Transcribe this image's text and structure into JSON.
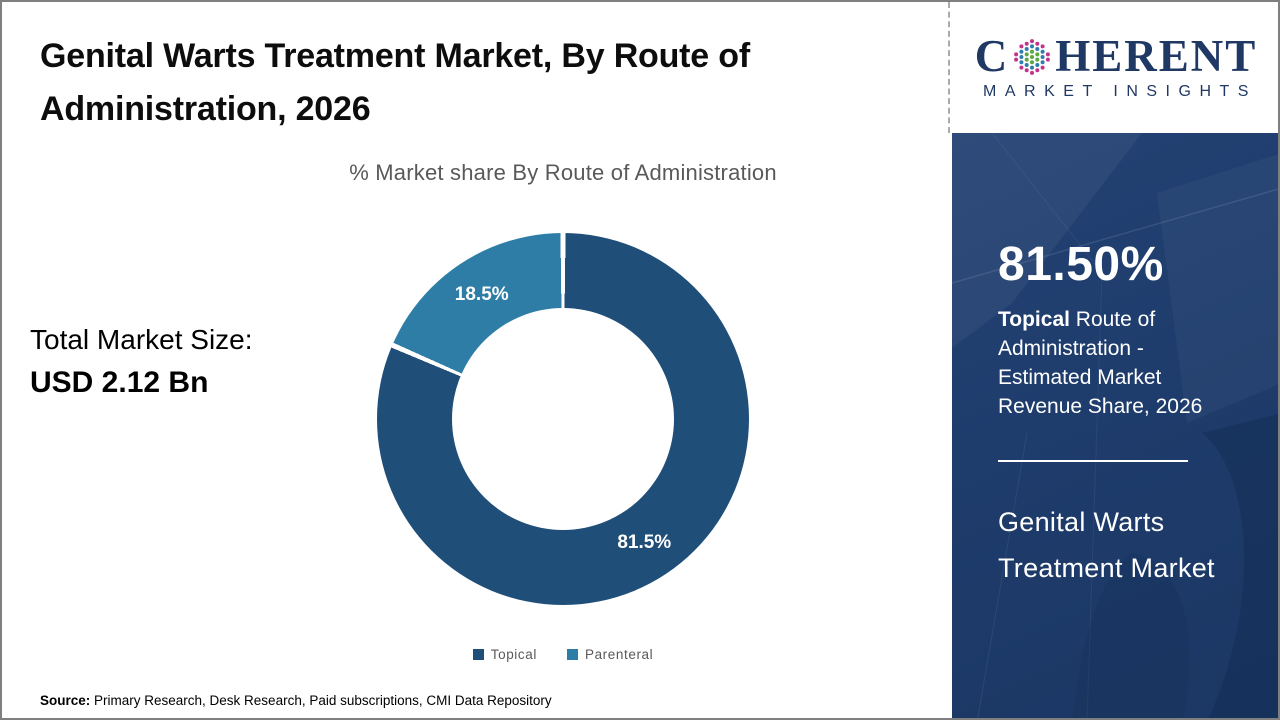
{
  "header": {
    "title": "Genital Warts Treatment Market, By Route of Administration, 2026"
  },
  "logo": {
    "brand_c": "C",
    "brand_rest": "HERENT",
    "tagline": "MARKET INSIGHTS",
    "brand_color": "#1f3864",
    "globe_colors": {
      "inner": "#5aa83f",
      "middle": "#2e7dae",
      "outer": "#c2348a"
    }
  },
  "main": {
    "total_market_label": "Total Market Size:",
    "total_market_value": "USD 2.12 Bn",
    "source_label": "Source:",
    "source_text": " Primary Research, Desk Research, Paid subscriptions, CMI Data Repository"
  },
  "chart_data": {
    "type": "pie",
    "donut": true,
    "title": "% Market share By Route of Administration",
    "categories": [
      "Topical",
      "Parenteral"
    ],
    "values": [
      81.5,
      18.5
    ],
    "labels": [
      "81.5%",
      "18.5%"
    ],
    "colors": [
      "#1F4E79",
      "#2E7DA6"
    ],
    "legend_position": "bottom",
    "start_angle_deg": 0,
    "direction": "clockwise"
  },
  "sidebar": {
    "stat_value": "81.50%",
    "stat_bold": "Topical",
    "stat_rest": " Route of Administration - Estimated Market Revenue Share, 2026",
    "footer_line1": "Genital Warts",
    "footer_line2": "Treatment Market",
    "bg_color": "#1e3c6c"
  }
}
